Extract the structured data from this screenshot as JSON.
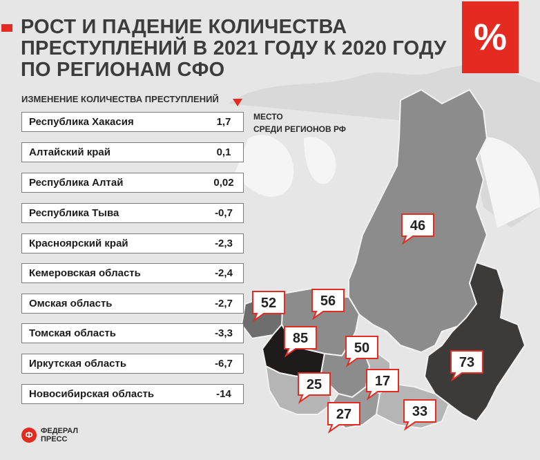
{
  "title": "РОСТ И ПАДЕНИЕ КОЛИЧЕСТВА ПРЕСТУПЛЕНИЙ В 2021 ГОДУ К 2020 ГОДУ ПО РЕГИОНАМ СФО",
  "badge": "%",
  "column_header": "ИЗМЕНЕНИЕ КОЛИЧЕСТВА ПРЕСТУПЛЕНИЙ",
  "place_header_line1": "МЕСТО",
  "place_header_line2": "СРЕДИ РЕГИОНОВ РФ",
  "logo_line1": "ФЕДЕРАЛ",
  "logo_line2": "ПРЕСС",
  "colors": {
    "accent": "#e32b22",
    "region_light": "#b5b5b5",
    "region_mid": "#8c8c8c",
    "region_dark": "#3d3a3a",
    "region_black": "#1f1b1b"
  },
  "chart_data": {
    "type": "table",
    "columns": [
      "region",
      "change"
    ],
    "rows": [
      {
        "region": "Республика Хакасия",
        "change": "1,7"
      },
      {
        "region": "Алтайский край",
        "change": "0,1"
      },
      {
        "region": "Республика Алтай",
        "change": "0,02"
      },
      {
        "region": "Республика Тыва",
        "change": "-0,7"
      },
      {
        "region": "Красноярский край",
        "change": "-2,3"
      },
      {
        "region": "Кемеровская область",
        "change": "-2,4"
      },
      {
        "region": "Омская область",
        "change": "-2,7"
      },
      {
        "region": "Томская область",
        "change": "-3,3"
      },
      {
        "region": "Иркутская область",
        "change": "-6,7"
      },
      {
        "region": "Новосибирская область",
        "change": "-14"
      }
    ],
    "map_places": [
      "46",
      "52",
      "56",
      "85",
      "50",
      "25",
      "17",
      "27",
      "33",
      "73"
    ]
  }
}
